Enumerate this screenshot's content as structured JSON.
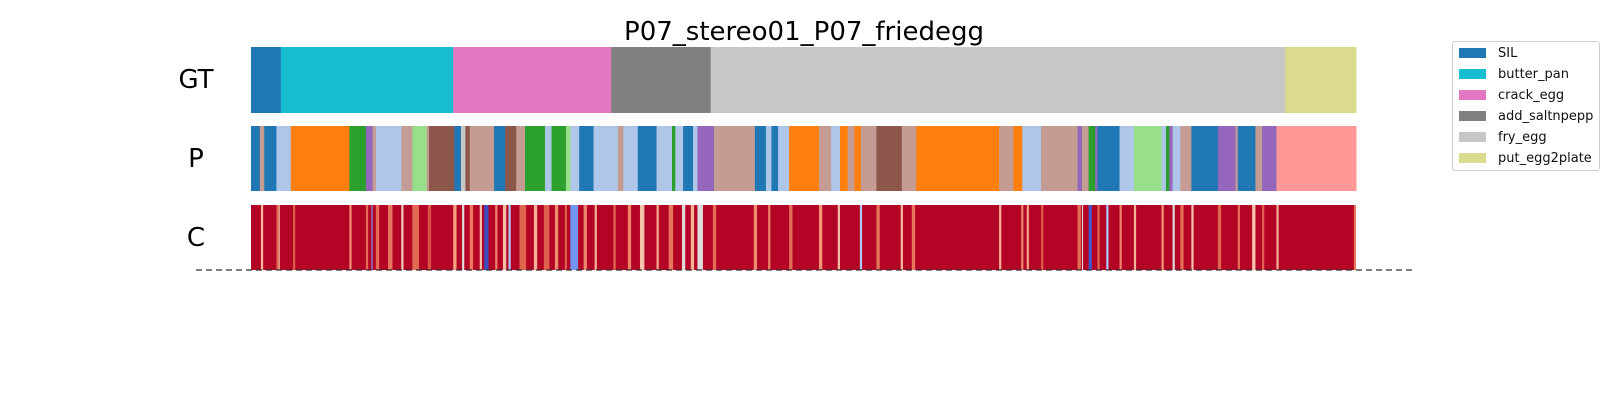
{
  "chart_data": {
    "type": "heatmap",
    "title": "P07_stereo01_P07_friedegg",
    "xlim": [
      0,
      1000
    ],
    "row_labels": [
      "GT",
      "P",
      "C"
    ],
    "classes": [
      {
        "name": "SIL",
        "color": "#1f77b4"
      },
      {
        "name": "butter_pan",
        "color": "#17becf"
      },
      {
        "name": "crack_egg",
        "color": "#e377c2"
      },
      {
        "name": "add_saltnpepper",
        "color": "#7f7f7f"
      },
      {
        "name": "fry_egg",
        "color": "#c7c7c7"
      },
      {
        "name": "put_egg2plate",
        "color": "#dbdb8d"
      }
    ],
    "extra_colors": {
      "orange": "#ff7f0e",
      "green": "#2ca02c",
      "purple": "#9467bd",
      "lightblue": "#aec7e8",
      "lightgreen": "#98df8a",
      "brown": "#8c564b",
      "tan": "#c49c94",
      "pink": "#ff9896"
    },
    "gt_segments": [
      {
        "start": 0,
        "end": 27,
        "color": "#1f77b4"
      },
      {
        "start": 27,
        "end": 183,
        "color": "#17becf"
      },
      {
        "start": 183,
        "end": 326,
        "color": "#e377c2"
      },
      {
        "start": 326,
        "end": 416,
        "color": "#7f7f7f"
      },
      {
        "start": 416,
        "end": 936,
        "color": "#c7c7c7"
      },
      {
        "start": 936,
        "end": 1000,
        "color": "#dbdb8d"
      }
    ],
    "pred_segments": [
      {
        "start": 0,
        "end": 8,
        "color": "#1f77b4"
      },
      {
        "start": 8,
        "end": 12,
        "color": "#c49c94"
      },
      {
        "start": 12,
        "end": 23,
        "color": "#1f77b4"
      },
      {
        "start": 23,
        "end": 36,
        "color": "#aec7e8"
      },
      {
        "start": 36,
        "end": 89,
        "color": "#ff7f0e"
      },
      {
        "start": 89,
        "end": 104,
        "color": "#2ca02c"
      },
      {
        "start": 104,
        "end": 110,
        "color": "#9467bd"
      },
      {
        "start": 110,
        "end": 113,
        "color": "#c49c94"
      },
      {
        "start": 113,
        "end": 136,
        "color": "#aec7e8"
      },
      {
        "start": 136,
        "end": 146,
        "color": "#c49c94"
      },
      {
        "start": 146,
        "end": 159,
        "color": "#98df8a"
      },
      {
        "start": 159,
        "end": 161,
        "color": "#c49c94"
      },
      {
        "start": 161,
        "end": 184,
        "color": "#8c564b"
      },
      {
        "start": 184,
        "end": 190,
        "color": "#1f77b4"
      },
      {
        "start": 190,
        "end": 194,
        "color": "#c7c7c7"
      },
      {
        "start": 194,
        "end": 198,
        "color": "#8c564b"
      },
      {
        "start": 198,
        "end": 220,
        "color": "#c49c94"
      },
      {
        "start": 220,
        "end": 230,
        "color": "#1f77b4"
      },
      {
        "start": 230,
        "end": 240,
        "color": "#8c564b"
      },
      {
        "start": 240,
        "end": 248,
        "color": "#c49c94"
      },
      {
        "start": 248,
        "end": 266,
        "color": "#2ca02c"
      },
      {
        "start": 266,
        "end": 272,
        "color": "#aec7e8"
      },
      {
        "start": 272,
        "end": 285,
        "color": "#2ca02c"
      },
      {
        "start": 285,
        "end": 289,
        "color": "#98df8a"
      },
      {
        "start": 289,
        "end": 297,
        "color": "#aec7e8"
      },
      {
        "start": 297,
        "end": 310,
        "color": "#1f77b4"
      },
      {
        "start": 310,
        "end": 332,
        "color": "#aec7e8"
      },
      {
        "start": 332,
        "end": 337,
        "color": "#c49c94"
      },
      {
        "start": 337,
        "end": 350,
        "color": "#aec7e8"
      },
      {
        "start": 350,
        "end": 367,
        "color": "#1f77b4"
      },
      {
        "start": 367,
        "end": 381,
        "color": "#aec7e8"
      },
      {
        "start": 381,
        "end": 384,
        "color": "#2ca02c"
      },
      {
        "start": 384,
        "end": 391,
        "color": "#aec7e8"
      },
      {
        "start": 391,
        "end": 400,
        "color": "#1f77b4"
      },
      {
        "start": 400,
        "end": 404,
        "color": "#aec7e8"
      },
      {
        "start": 404,
        "end": 419,
        "color": "#9467bd"
      },
      {
        "start": 419,
        "end": 456,
        "color": "#c49c94"
      },
      {
        "start": 456,
        "end": 466,
        "color": "#1f77b4"
      },
      {
        "start": 466,
        "end": 471,
        "color": "#aec7e8"
      },
      {
        "start": 471,
        "end": 477,
        "color": "#1f77b4"
      },
      {
        "start": 477,
        "end": 487,
        "color": "#aec7e8"
      },
      {
        "start": 487,
        "end": 514,
        "color": "#ff7f0e"
      },
      {
        "start": 514,
        "end": 525,
        "color": "#c49c94"
      },
      {
        "start": 525,
        "end": 533,
        "color": "#aec7e8"
      },
      {
        "start": 533,
        "end": 540,
        "color": "#ff7f0e"
      },
      {
        "start": 540,
        "end": 546,
        "color": "#c49c94"
      },
      {
        "start": 546,
        "end": 552,
        "color": "#ff7f0e"
      },
      {
        "start": 552,
        "end": 566,
        "color": "#c49c94"
      },
      {
        "start": 566,
        "end": 589,
        "color": "#8c564b"
      },
      {
        "start": 589,
        "end": 602,
        "color": "#c49c94"
      },
      {
        "start": 602,
        "end": 677,
        "color": "#ff7f0e"
      },
      {
        "start": 677,
        "end": 690,
        "color": "#c49c94"
      },
      {
        "start": 690,
        "end": 698,
        "color": "#ff7f0e"
      },
      {
        "start": 698,
        "end": 715,
        "color": "#aec7e8"
      },
      {
        "start": 715,
        "end": 748,
        "color": "#c49c94"
      },
      {
        "start": 748,
        "end": 752,
        "color": "#9467bd"
      },
      {
        "start": 752,
        "end": 758,
        "color": "#c49c94"
      },
      {
        "start": 758,
        "end": 764,
        "color": "#2ca02c"
      },
      {
        "start": 764,
        "end": 766,
        "color": "#9467bd"
      },
      {
        "start": 766,
        "end": 786,
        "color": "#1f77b4"
      },
      {
        "start": 786,
        "end": 799,
        "color": "#aec7e8"
      },
      {
        "start": 799,
        "end": 824,
        "color": "#98df8a"
      },
      {
        "start": 824,
        "end": 828,
        "color": "#aec7e8"
      },
      {
        "start": 828,
        "end": 831,
        "color": "#2ca02c"
      },
      {
        "start": 831,
        "end": 834,
        "color": "#9467bd"
      },
      {
        "start": 834,
        "end": 841,
        "color": "#aec7e8"
      },
      {
        "start": 841,
        "end": 851,
        "color": "#c49c94"
      },
      {
        "start": 851,
        "end": 875,
        "color": "#1f77b4"
      },
      {
        "start": 875,
        "end": 891,
        "color": "#9467bd"
      },
      {
        "start": 891,
        "end": 893,
        "color": "#c49c94"
      },
      {
        "start": 893,
        "end": 909,
        "color": "#1f77b4"
      },
      {
        "start": 909,
        "end": 915,
        "color": "#c49c94"
      },
      {
        "start": 915,
        "end": 928,
        "color": "#9467bd"
      },
      {
        "start": 928,
        "end": 963,
        "color": "#ff9896"
      },
      {
        "start": 963,
        "end": 1000,
        "color": "#ff9896"
      }
    ],
    "confidence": {
      "base_color": "#b40426",
      "dips": [
        {
          "at": 9,
          "width": 2,
          "color": "#f7b89c"
        },
        {
          "at": 23,
          "width": 2,
          "color": "#e0654f"
        },
        {
          "at": 25,
          "width": 1,
          "color": "#f4c5ad"
        },
        {
          "at": 38,
          "width": 2,
          "color": "#dd5f4b"
        },
        {
          "at": 89,
          "width": 2,
          "color": "#f29274"
        },
        {
          "at": 104,
          "width": 2,
          "color": "#e36c55"
        },
        {
          "at": 109,
          "width": 1,
          "color": "#7b9ff9"
        },
        {
          "at": 113,
          "width": 3,
          "color": "#e46e56"
        },
        {
          "at": 124,
          "width": 4,
          "color": "#e8765c"
        },
        {
          "at": 136,
          "width": 2,
          "color": "#f2cbb7"
        },
        {
          "at": 146,
          "width": 6,
          "color": "#e26952"
        },
        {
          "at": 160,
          "width": 3,
          "color": "#d85646"
        },
        {
          "at": 183,
          "width": 3,
          "color": "#f5a081"
        },
        {
          "at": 191,
          "width": 2,
          "color": "#dddcdc"
        },
        {
          "at": 198,
          "width": 3,
          "color": "#e97a5f"
        },
        {
          "at": 207,
          "width": 2,
          "color": "#f4c5ad"
        },
        {
          "at": 211,
          "width": 4,
          "color": "#3b4cc0"
        },
        {
          "at": 221,
          "width": 2,
          "color": "#ee8468"
        },
        {
          "at": 228,
          "width": 3,
          "color": "#f6bda2"
        },
        {
          "at": 233,
          "width": 2,
          "color": "#aec9fc"
        },
        {
          "at": 243,
          "width": 6,
          "color": "#e0654f"
        },
        {
          "at": 256,
          "width": 3,
          "color": "#f7b194"
        },
        {
          "at": 265,
          "width": 5,
          "color": "#de614d"
        },
        {
          "at": 275,
          "width": 3,
          "color": "#f18d6f"
        },
        {
          "at": 284,
          "width": 2,
          "color": "#dd5f4b"
        },
        {
          "at": 289,
          "width": 7,
          "color": "#7295f4"
        },
        {
          "at": 301,
          "width": 3,
          "color": "#ee8468"
        },
        {
          "at": 311,
          "width": 2,
          "color": "#f7b396"
        },
        {
          "at": 328,
          "width": 2,
          "color": "#e26952"
        },
        {
          "at": 341,
          "width": 3,
          "color": "#ee8468"
        },
        {
          "at": 352,
          "width": 4,
          "color": "#f5c2aa"
        },
        {
          "at": 367,
          "width": 2,
          "color": "#f7ac8e"
        },
        {
          "at": 378,
          "width": 4,
          "color": "#e8765c"
        },
        {
          "at": 390,
          "width": 3,
          "color": "#e2dad5"
        },
        {
          "at": 398,
          "width": 3,
          "color": "#f7b194"
        },
        {
          "at": 404,
          "width": 5,
          "color": "#dddcdc"
        },
        {
          "at": 418,
          "width": 3,
          "color": "#e36c55"
        },
        {
          "at": 455,
          "width": 3,
          "color": "#f08b6e"
        },
        {
          "at": 468,
          "width": 2,
          "color": "#ee8468"
        },
        {
          "at": 487,
          "width": 3,
          "color": "#e46e56"
        },
        {
          "at": 514,
          "width": 3,
          "color": "#f39577"
        },
        {
          "at": 531,
          "width": 2,
          "color": "#f5c0a7"
        },
        {
          "at": 551,
          "width": 2,
          "color": "#aec9fc"
        },
        {
          "at": 566,
          "width": 3,
          "color": "#e67259"
        },
        {
          "at": 588,
          "width": 2,
          "color": "#f7b89c"
        },
        {
          "at": 598,
          "width": 3,
          "color": "#e8765c"
        },
        {
          "at": 677,
          "width": 2,
          "color": "#f7b194"
        },
        {
          "at": 697,
          "width": 2,
          "color": "#ee8468"
        },
        {
          "at": 702,
          "width": 2,
          "color": "#f5a081"
        },
        {
          "at": 715,
          "width": 2,
          "color": "#dd5f4b"
        },
        {
          "at": 748,
          "width": 3,
          "color": "#e46e56"
        },
        {
          "at": 752,
          "width": 1,
          "color": "#dddcdc"
        },
        {
          "at": 758,
          "width": 3,
          "color": "#4358cb"
        },
        {
          "at": 766,
          "width": 2,
          "color": "#e0654f"
        },
        {
          "at": 774,
          "width": 2,
          "color": "#aec9fc"
        },
        {
          "at": 786,
          "width": 2,
          "color": "#ee8468"
        },
        {
          "at": 799,
          "width": 2,
          "color": "#f7b396"
        },
        {
          "at": 824,
          "width": 2,
          "color": "#f39577"
        },
        {
          "at": 834,
          "width": 2,
          "color": "#dcdddd"
        },
        {
          "at": 841,
          "width": 3,
          "color": "#e36c55"
        },
        {
          "at": 851,
          "width": 2,
          "color": "#f4c5ad"
        },
        {
          "at": 875,
          "width": 3,
          "color": "#e0654f"
        },
        {
          "at": 893,
          "width": 2,
          "color": "#e57058"
        },
        {
          "at": 906,
          "width": 3,
          "color": "#f5c2aa"
        },
        {
          "at": 915,
          "width": 2,
          "color": "#e0654f"
        },
        {
          "at": 928,
          "width": 2,
          "color": "#f7b194"
        },
        {
          "at": 998,
          "width": 2,
          "color": "#e8765c"
        }
      ]
    }
  },
  "legend": {
    "items": [
      {
        "label": "SIL",
        "color": "#1f77b4"
      },
      {
        "label": "butter_pan",
        "color": "#17becf"
      },
      {
        "label": "crack_egg",
        "color": "#e377c2"
      },
      {
        "label": "add_saltnpepp",
        "color": "#7f7f7f"
      },
      {
        "label": "fry_egg",
        "color": "#c7c7c7"
      },
      {
        "label": "put_egg2plate",
        "color": "#dbdb8d"
      }
    ]
  }
}
